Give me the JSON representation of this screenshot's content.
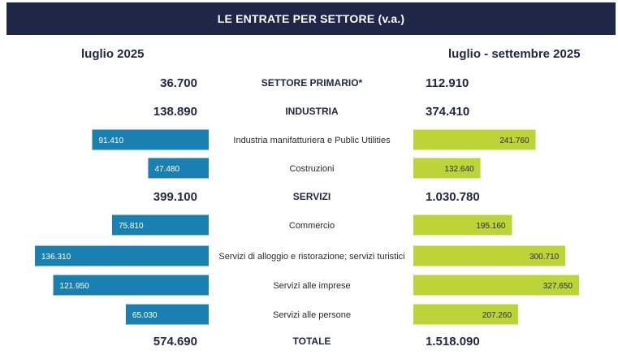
{
  "title": "LE ENTRATE PER SETTORE (v.a.)",
  "left_heading": "luglio 2025",
  "right_heading": "luglio  - settembre 2025",
  "colors": {
    "header_bg": "#1f2747",
    "left_bar": "#1a80b2",
    "right_bar": "#bcd438",
    "text_dark": "#1f2747"
  },
  "chart_data": {
    "type": "bar",
    "layout": "butterfly",
    "max_left": 136310,
    "max_right": 327650,
    "rows": [
      {
        "category": "SETTORE PRIMARIO*",
        "kind": "total",
        "left": 36700,
        "left_label": "36.700",
        "right": 112910,
        "right_label": "112.910"
      },
      {
        "category": "INDUSTRIA",
        "kind": "total",
        "left": 138890,
        "left_label": "138.890",
        "right": 374410,
        "right_label": "374.410"
      },
      {
        "category": "Industria manifatturiera e Public Utilities",
        "kind": "bar",
        "left": 91410,
        "left_label": "91.410",
        "right": 241760,
        "right_label": "241.760"
      },
      {
        "category": "Costruzioni",
        "kind": "bar",
        "left": 47480,
        "left_label": "47.480",
        "right": 132640,
        "right_label": "132.640"
      },
      {
        "category": "SERVIZI",
        "kind": "total",
        "left": 399100,
        "left_label": "399.100",
        "right": 1030780,
        "right_label": "1.030.780"
      },
      {
        "category": "Commercio",
        "kind": "bar",
        "left": 75810,
        "left_label": "75.810",
        "right": 195160,
        "right_label": "195.160"
      },
      {
        "category": "Servizi di alloggio e ristorazione; servizi turistici",
        "kind": "bar",
        "left": 136310,
        "left_label": "136.310",
        "right": 300710,
        "right_label": "300.710"
      },
      {
        "category": "Servizi alle imprese",
        "kind": "bar",
        "left": 121950,
        "left_label": "121.950",
        "right": 327650,
        "right_label": "327.650"
      },
      {
        "category": "Servizi alle persone",
        "kind": "bar",
        "left": 65030,
        "left_label": "65.030",
        "right": 207260,
        "right_label": "207.260"
      },
      {
        "category": "TOTALE",
        "kind": "total",
        "left": 574690,
        "left_label": "574.690",
        "right": 1518090,
        "right_label": "1.518.090"
      }
    ]
  }
}
